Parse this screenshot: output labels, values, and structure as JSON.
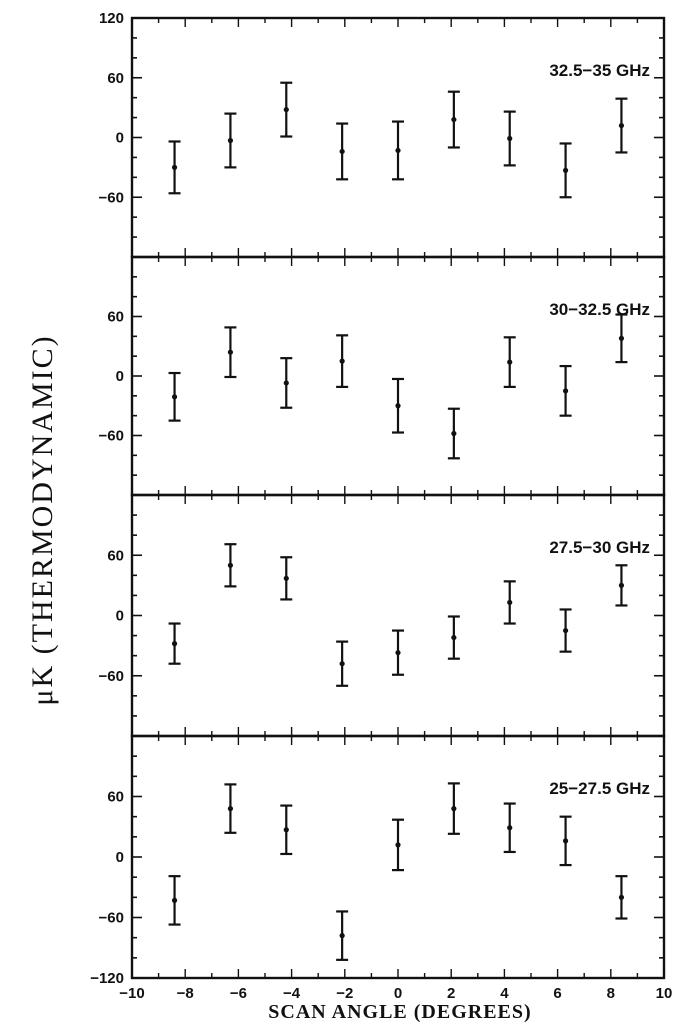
{
  "chart_data": {
    "type": "scatter",
    "style": "error-bar",
    "ylabel": "μK (THERMODYNAMIC)",
    "xlabel": "SCAN ANGLE (DEGREES)",
    "xlim": [
      -10,
      10
    ],
    "xticks": [
      -10,
      -8,
      -6,
      -4,
      -2,
      0,
      2,
      4,
      6,
      8,
      10
    ],
    "xtick_labels": [
      "−10",
      "−8",
      "−6",
      "−4",
      "−2",
      "0",
      "2",
      "4",
      "6",
      "8",
      "10"
    ],
    "x": [
      -8.4,
      -6.3,
      -4.2,
      -2.1,
      0,
      2.1,
      4.2,
      6.3,
      8.4
    ],
    "grid": false,
    "panels": [
      {
        "label": "32.5−35 GHz",
        "ylim": [
          -120,
          120
        ],
        "ytick_labels": [
          {
            "value": 120,
            "text": "120"
          },
          {
            "value": 60,
            "text": "60"
          },
          {
            "value": 0,
            "text": "0"
          },
          {
            "value": -60,
            "text": "−60"
          }
        ],
        "y": [
          -30,
          -3,
          28,
          -14,
          -13,
          18,
          -1,
          -33,
          12
        ],
        "yerr": [
          26,
          27,
          27,
          28,
          29,
          28,
          27,
          27,
          27
        ]
      },
      {
        "label": "30−32.5 GHz",
        "ylim": [
          -120,
          120
        ],
        "ytick_labels": [
          {
            "value": 60,
            "text": "60"
          },
          {
            "value": 0,
            "text": "0"
          },
          {
            "value": -60,
            "text": "−60"
          }
        ],
        "y": [
          -21,
          24,
          -7,
          15,
          -30,
          -58,
          14,
          -15,
          38
        ],
        "yerr": [
          24,
          25,
          25,
          26,
          27,
          25,
          25,
          25,
          24
        ]
      },
      {
        "label": "27.5−30 GHz",
        "ylim": [
          -120,
          120
        ],
        "ytick_labels": [
          {
            "value": 60,
            "text": "60"
          },
          {
            "value": 0,
            "text": "0"
          },
          {
            "value": -60,
            "text": "−60"
          }
        ],
        "y": [
          -28,
          50,
          37,
          -48,
          -37,
          -22,
          13,
          -15,
          30
        ],
        "yerr": [
          20,
          21,
          21,
          22,
          22,
          21,
          21,
          21,
          20
        ]
      },
      {
        "label": "25−27.5 GHz",
        "ylim": [
          -120,
          120
        ],
        "ytick_labels": [
          {
            "value": 60,
            "text": "60"
          },
          {
            "value": 0,
            "text": "0"
          },
          {
            "value": -60,
            "text": "−60"
          },
          {
            "value": -120,
            "text": "−120"
          }
        ],
        "y": [
          -43,
          48,
          27,
          -78,
          12,
          48,
          29,
          16,
          -40
        ],
        "yerr": [
          24,
          24,
          24,
          24,
          25,
          25,
          24,
          24,
          21
        ]
      }
    ]
  }
}
